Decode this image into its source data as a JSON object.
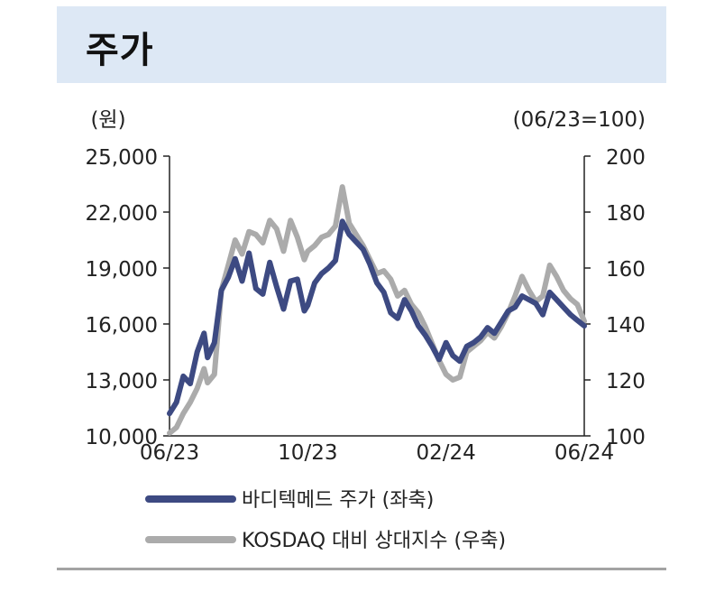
{
  "header": {
    "title": "주가"
  },
  "chart_data": {
    "type": "line",
    "title": "",
    "left_axis": {
      "unit_label": "(원)",
      "ylim": [
        10000,
        25000
      ],
      "ticks": [
        10000,
        13000,
        16000,
        19000,
        22000,
        25000
      ],
      "tick_labels": [
        "10,000",
        "13,000",
        "16,000",
        "19,000",
        "22,000",
        "25,000"
      ]
    },
    "right_axis": {
      "unit_label": "(06/23=100)",
      "ylim": [
        100,
        200
      ],
      "ticks": [
        100,
        120,
        140,
        160,
        180,
        200
      ],
      "tick_labels": [
        "100",
        "120",
        "140",
        "160",
        "180",
        "200"
      ]
    },
    "x_axis": {
      "tick_labels": [
        "06/23",
        "10/23",
        "02/24",
        "06/24"
      ]
    },
    "x_range": [
      0,
      12
    ],
    "grid": false,
    "legend_position": "bottom",
    "series": [
      {
        "name": "바디텍메드 주가 (좌축)",
        "axis": "left",
        "color": "#3d4a82",
        "x": [
          0,
          0.2,
          0.4,
          0.6,
          0.8,
          1.0,
          1.1,
          1.3,
          1.5,
          1.7,
          1.9,
          2.1,
          2.3,
          2.5,
          2.7,
          2.9,
          3.1,
          3.3,
          3.5,
          3.7,
          3.9,
          4.0,
          4.2,
          4.4,
          4.6,
          4.8,
          5.0,
          5.2,
          5.4,
          5.6,
          5.8,
          6.0,
          6.2,
          6.4,
          6.6,
          6.8,
          7.0,
          7.2,
          7.4,
          7.6,
          7.8,
          8.0,
          8.2,
          8.4,
          8.6,
          8.8,
          9.0,
          9.2,
          9.4,
          9.6,
          9.8,
          10.0,
          10.2,
          10.4,
          10.6,
          10.8,
          11.0,
          11.2,
          11.4,
          11.6,
          11.8,
          12.0
        ],
        "values": [
          11200,
          11800,
          13200,
          12800,
          14500,
          15500,
          14200,
          15000,
          17800,
          18500,
          19500,
          18300,
          19800,
          17900,
          17600,
          19300,
          18000,
          16800,
          18300,
          18400,
          16700,
          17000,
          18200,
          18700,
          19000,
          19400,
          21500,
          20800,
          20400,
          20000,
          19200,
          18200,
          17700,
          16600,
          16300,
          17300,
          16700,
          15900,
          15400,
          14800,
          14100,
          15000,
          14300,
          14000,
          14800,
          15000,
          15300,
          15800,
          15500,
          16100,
          16700,
          16900,
          17500,
          17300,
          17100,
          16500,
          17700,
          17300,
          16900,
          16500,
          16200,
          15900
        ]
      },
      {
        "name": "KOSDAQ 대비 상대지수 (우축)",
        "axis": "right",
        "color": "#ababab",
        "x": [
          0,
          0.2,
          0.4,
          0.6,
          0.8,
          1.0,
          1.1,
          1.3,
          1.5,
          1.7,
          1.9,
          2.1,
          2.3,
          2.5,
          2.7,
          2.9,
          3.1,
          3.3,
          3.5,
          3.7,
          3.9,
          4.0,
          4.2,
          4.4,
          4.6,
          4.8,
          5.0,
          5.2,
          5.4,
          5.6,
          5.8,
          6.0,
          6.2,
          6.4,
          6.6,
          6.8,
          7.0,
          7.2,
          7.4,
          7.6,
          7.8,
          8.0,
          8.2,
          8.4,
          8.6,
          8.8,
          9.0,
          9.2,
          9.4,
          9.6,
          9.8,
          10.0,
          10.2,
          10.4,
          10.6,
          10.8,
          11.0,
          11.2,
          11.4,
          11.6,
          11.8,
          12.0
        ],
        "values": [
          101,
          103,
          108,
          112,
          117,
          124,
          119,
          122,
          152,
          161,
          170,
          165,
          173,
          172,
          169,
          177,
          174,
          166,
          177,
          171,
          163,
          166,
          168,
          171,
          172,
          175,
          189,
          176,
          172,
          168,
          163,
          158,
          159,
          156,
          150,
          152,
          147,
          144,
          139,
          133,
          127,
          122,
          120,
          121,
          130,
          132,
          134,
          137,
          135,
          139,
          144,
          150,
          157,
          152,
          148,
          150,
          161,
          157,
          152,
          149,
          147,
          141
        ]
      }
    ]
  }
}
